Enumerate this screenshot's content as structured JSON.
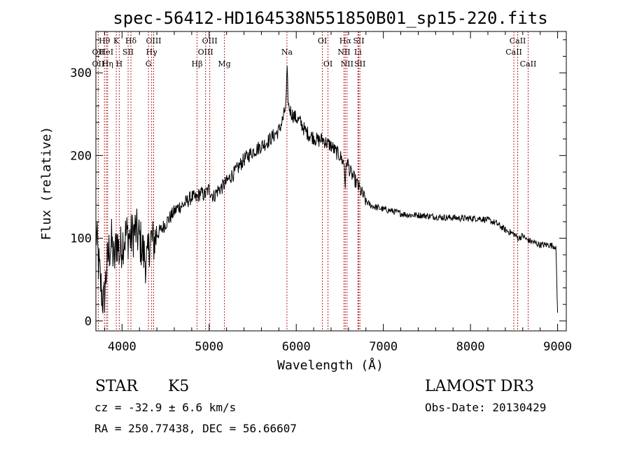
{
  "chart_data": {
    "type": "line",
    "title": "spec-56412-HD164538N551850B01_sp15-220.fits",
    "xlabel": "Wavelength (Å)",
    "ylabel": "Flux (relative)",
    "xlim": [
      3700,
      9100
    ],
    "ylim": [
      -12,
      350
    ],
    "xticks": [
      4000,
      5000,
      6000,
      7000,
      8000,
      9000
    ],
    "yticks": [
      0,
      100,
      200,
      300
    ],
    "grid": false,
    "series": [
      {
        "name": "spectrum",
        "x": [
          3700,
          3730,
          3760,
          3790,
          3820,
          3850,
          3880,
          3910,
          3940,
          3970,
          4000,
          4050,
          4100,
          4150,
          4200,
          4250,
          4290,
          4320,
          4360,
          4400,
          4450,
          4500,
          4550,
          4600,
          4650,
          4700,
          4750,
          4800,
          4850,
          4900,
          4950,
          5000,
          5050,
          5100,
          5150,
          5200,
          5250,
          5300,
          5350,
          5400,
          5450,
          5500,
          5550,
          5600,
          5650,
          5700,
          5750,
          5800,
          5850,
          5880,
          5895,
          5910,
          5950,
          6000,
          6050,
          6100,
          6150,
          6200,
          6250,
          6300,
          6350,
          6400,
          6450,
          6500,
          6550,
          6563,
          6580,
          6620,
          6650,
          6700,
          6750,
          6800,
          6850,
          6900,
          7000,
          7100,
          7200,
          7300,
          7400,
          7500,
          7600,
          7700,
          7800,
          7900,
          8000,
          8100,
          8200,
          8300,
          8400,
          8500,
          8550,
          8600,
          8650,
          8700,
          8800,
          8900,
          8980,
          9000
        ],
        "y": [
          110,
          70,
          40,
          20,
          60,
          85,
          95,
          70,
          100,
          80,
          95,
          105,
          100,
          110,
          100,
          80,
          70,
          100,
          95,
          105,
          110,
          118,
          125,
          132,
          138,
          140,
          145,
          150,
          148,
          155,
          152,
          160,
          150,
          158,
          162,
          168,
          175,
          180,
          188,
          195,
          200,
          205,
          208,
          212,
          215,
          220,
          225,
          230,
          245,
          260,
          300,
          260,
          250,
          245,
          240,
          230,
          225,
          222,
          218,
          220,
          215,
          212,
          205,
          200,
          190,
          165,
          195,
          180,
          175,
          165,
          155,
          145,
          140,
          138,
          135,
          133,
          130,
          128,
          128,
          127,
          126,
          125,
          125,
          124,
          124,
          124,
          122,
          118,
          110,
          105,
          100,
          103,
          98,
          96,
          92,
          92,
          90,
          10
        ]
      }
    ],
    "lines": [
      {
        "label": "OII",
        "wl": 3727,
        "row": 2
      },
      {
        "label": "OII",
        "wl": 3727,
        "row": 3
      },
      {
        "label": "Hθ",
        "wl": 3798,
        "row": 1
      },
      {
        "label": "HeI",
        "wl": 3820,
        "row": 2
      },
      {
        "label": "Hη",
        "wl": 3835,
        "row": 3
      },
      {
        "label": "K",
        "wl": 3934,
        "row": 1
      },
      {
        "label": "SII",
        "wl": 4070,
        "row": 2
      },
      {
        "label": "H",
        "wl": 3968,
        "row": 3
      },
      {
        "label": "Hδ",
        "wl": 4102,
        "row": 1
      },
      {
        "label": "OIII",
        "wl": 4363,
        "row": 1
      },
      {
        "label": "Hγ",
        "wl": 4340,
        "row": 2
      },
      {
        "label": "G",
        "wl": 4304,
        "row": 3
      },
      {
        "label": "Hβ",
        "wl": 4861,
        "row": 3
      },
      {
        "label": "OIII",
        "wl": 5007,
        "row": 1
      },
      {
        "label": "OIII",
        "wl": 4959,
        "row": 2
      },
      {
        "label": "Mg",
        "wl": 5175,
        "row": 3
      },
      {
        "label": "Na",
        "wl": 5893,
        "row": 2
      },
      {
        "label": "OI",
        "wl": 6300,
        "row": 1
      },
      {
        "label": "OI",
        "wl": 6364,
        "row": 3
      },
      {
        "label": "Hα",
        "wl": 6563,
        "row": 1
      },
      {
        "label": "NII",
        "wl": 6548,
        "row": 2
      },
      {
        "label": "NII",
        "wl": 6583,
        "row": 3
      },
      {
        "label": "SII",
        "wl": 6717,
        "row": 1
      },
      {
        "label": "Li",
        "wl": 6708,
        "row": 2
      },
      {
        "label": "SII",
        "wl": 6731,
        "row": 3
      },
      {
        "label": "CaII",
        "wl": 8542,
        "row": 1
      },
      {
        "label": "CaII",
        "wl": 8498,
        "row": 2
      },
      {
        "label": "CaII",
        "wl": 8662,
        "row": 3
      }
    ]
  },
  "info": {
    "class_label": "STAR",
    "subclass": "K5",
    "survey": "LAMOST DR3",
    "cz": "cz = -32.9 ± 6.6 km/s",
    "obs_date": "Obs-Date: 20130429",
    "coords": "RA = 250.77438, DEC =  56.66607"
  }
}
